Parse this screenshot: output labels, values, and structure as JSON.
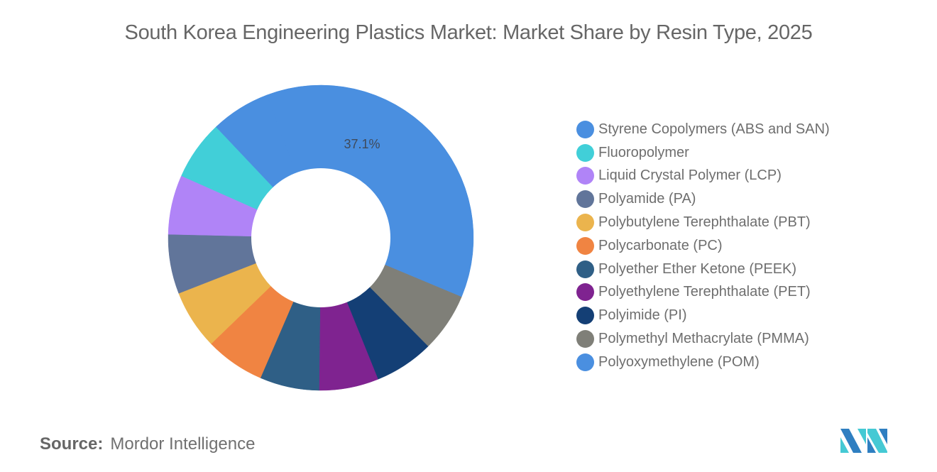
{
  "title": "South Korea Engineering Plastics Market: Market Share by Resin Type, 2025",
  "source": {
    "label": "Source:",
    "value": "Mordor Intelligence"
  },
  "logo": {
    "name": "mordor-intelligence-logo",
    "colors": [
      "#2f7fc1",
      "#45c9d4"
    ]
  },
  "chart_data": {
    "type": "pie",
    "subtype": "donut",
    "title": "South Korea Engineering Plastics Market: Market Share by Resin Type, 2025",
    "legend_position": "right",
    "start_angle_deg": 112.7,
    "direction": "clockwise",
    "visible_data_labels": [
      {
        "category": "Styrene Copolymers (ABS and SAN)",
        "text": "37.1%"
      }
    ],
    "categories": [
      "Styrene Copolymers (ABS and SAN)",
      "Fluoropolymer",
      "Liquid Crystal Polymer (LCP)",
      "Polyamide (PA)",
      "Polybutylene Terephthalate (PBT)",
      "Polycarbonate (PC)",
      "Polyether Ether Ketone (PEEK)",
      "Polyethylene Terephthalate (PET)",
      "Polyimide (PI)",
      "Polymethyl Methacrylate (PMMA)",
      "Polyoxymethylene (POM)"
    ],
    "values": [
      37.1,
      6.3,
      6.3,
      6.3,
      6.3,
      6.3,
      6.3,
      6.3,
      6.3,
      6.3,
      6.3
    ],
    "colors": [
      "#4a8fe0",
      "#41cfd8",
      "#b084f7",
      "#61759a",
      "#ebb44d",
      "#f08442",
      "#2f5f86",
      "#7f2390",
      "#143f75",
      "#7f7f78",
      "#4a8fe0"
    ],
    "draw_order": [
      9,
      8,
      7,
      6,
      5,
      4,
      3,
      2,
      1,
      10,
      0
    ]
  },
  "legend": {
    "items": [
      {
        "label": "Styrene Copolymers (ABS and SAN)",
        "color": "#4a8fe0"
      },
      {
        "label": "Fluoropolymer",
        "color": "#41cfd8"
      },
      {
        "label": "Liquid Crystal Polymer (LCP)",
        "color": "#b084f7"
      },
      {
        "label": "Polyamide (PA)",
        "color": "#61759a"
      },
      {
        "label": "Polybutylene Terephthalate (PBT)",
        "color": "#ebb44d"
      },
      {
        "label": "Polycarbonate (PC)",
        "color": "#f08442"
      },
      {
        "label": "Polyether Ether Ketone (PEEK)",
        "color": "#2f5f86"
      },
      {
        "label": "Polyethylene Terephthalate (PET)",
        "color": "#7f2390"
      },
      {
        "label": "Polyimide (PI)",
        "color": "#143f75"
      },
      {
        "label": "Polymethyl Methacrylate (PMMA)",
        "color": "#7f7f78"
      },
      {
        "label": "Polyoxymethylene (POM)",
        "color": "#4a8fe0"
      }
    ]
  }
}
